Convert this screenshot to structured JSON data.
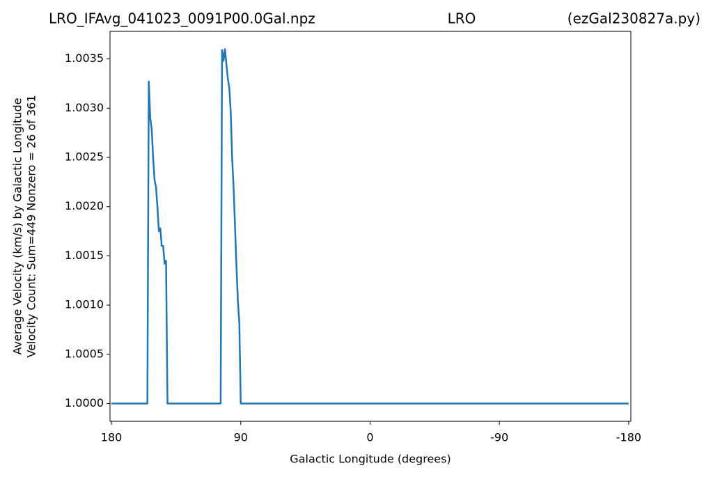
{
  "chart_data": {
    "type": "line",
    "title_left": "LRO_IFAvg_041023_0091P00.0Gal.npz",
    "title": "LRO",
    "title_right": "(ezGal230827a.py)",
    "xlabel": "Galactic Longitude (degrees)",
    "ylabel": [
      "Average Velocity (km/s) by Galactic Longitude",
      "Velocity Count: Sum=449 Nonzero = 26 of 361"
    ],
    "x": [
      180,
      155,
      154,
      153,
      152,
      151,
      150,
      149,
      148,
      147,
      146,
      145,
      144,
      143,
      142,
      141,
      104,
      103,
      102,
      101,
      100,
      99,
      98,
      97,
      96,
      95,
      94,
      93,
      92,
      91,
      90,
      -180
    ],
    "values": [
      1.0,
      1.0,
      1.00327,
      1.0029,
      1.00279,
      1.0025,
      1.00227,
      1.0022,
      1.002,
      1.00175,
      1.00178,
      1.0016,
      1.0016,
      1.00142,
      1.00145,
      1.0,
      1.0,
      1.00359,
      1.00348,
      1.0036,
      1.00345,
      1.0033,
      1.00321,
      1.00297,
      1.00249,
      1.0022,
      1.0018,
      1.0014,
      1.00104,
      1.00082,
      1.0,
      1.0
    ],
    "color": "#1f77b4",
    "xlim": [
      181,
      -181.5
    ],
    "ylim": [
      0.99982,
      1.00378
    ],
    "xticks": [
      180,
      90,
      0,
      -90,
      -180
    ],
    "yticks": [
      {
        "value": 1.0,
        "label": "1.0000"
      },
      {
        "value": 1.0005,
        "label": "1.0005"
      },
      {
        "value": 1.001,
        "label": "1.0010"
      },
      {
        "value": 1.0015,
        "label": "1.0015"
      },
      {
        "value": 1.002,
        "label": "1.0020"
      },
      {
        "value": 1.0025,
        "label": "1.0025"
      },
      {
        "value": 1.003,
        "label": "1.0030"
      },
      {
        "value": 1.0035,
        "label": "1.0035"
      }
    ],
    "grid": false
  }
}
